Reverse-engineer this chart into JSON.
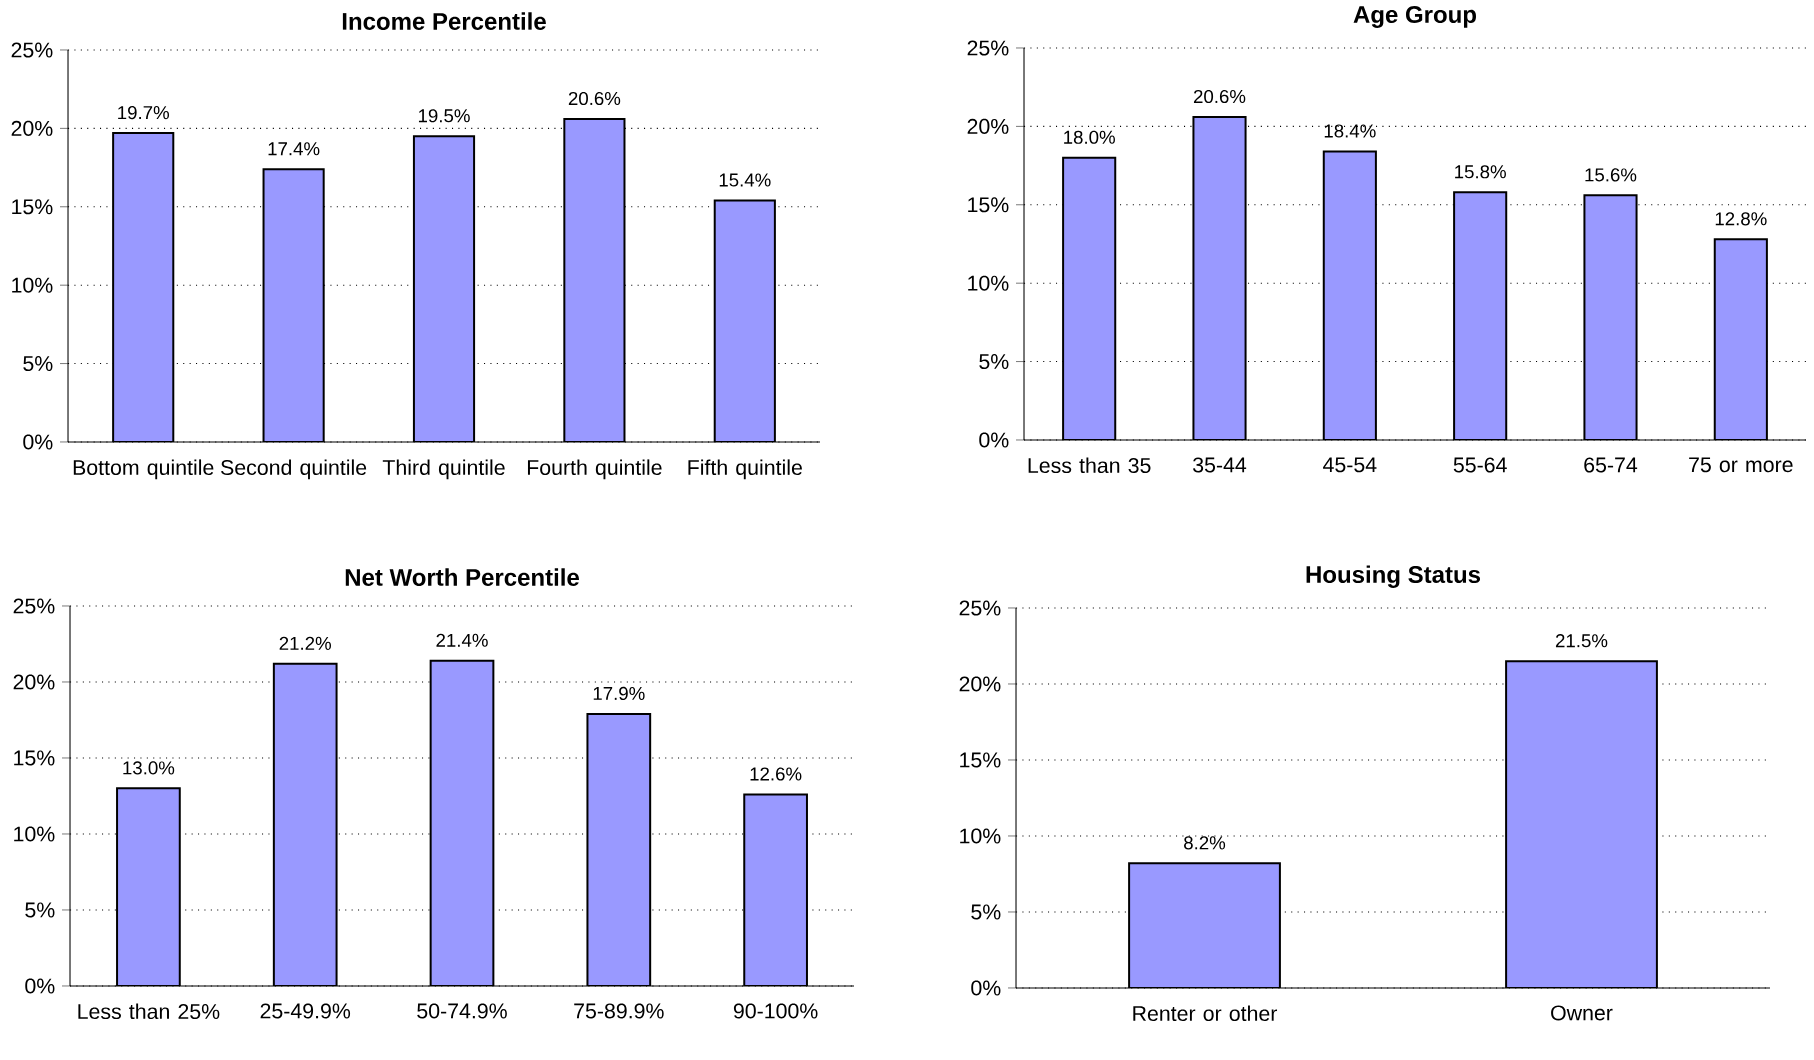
{
  "chart_data": [
    {
      "type": "bar",
      "title": "Income Percentile",
      "categories": [
        "Bottom quintile",
        "Second quintile",
        "Third quintile",
        "Fourth quintile",
        "Fifth quintile"
      ],
      "values": [
        19.7,
        17.4,
        19.5,
        20.6,
        15.4
      ],
      "value_labels": [
        "19.7%",
        "17.4%",
        "19.5%",
        "20.6%",
        "15.4%"
      ],
      "color": "#9999ff",
      "ylim": [
        0,
        25
      ],
      "yticks": [
        {
          "value": 0,
          "label": "0%"
        },
        {
          "value": 5,
          "label": "5%"
        },
        {
          "value": 10,
          "label": "10%"
        },
        {
          "value": 15,
          "label": "15%"
        },
        {
          "value": 20,
          "label": "20%"
        },
        {
          "value": 25,
          "label": "25%"
        }
      ],
      "grid": "y"
    },
    {
      "type": "bar",
      "title": "Age Group",
      "categories": [
        "Less than 35",
        "35-44",
        "45-54",
        "55-64",
        "65-74",
        "75 or more"
      ],
      "values": [
        18.0,
        20.6,
        18.4,
        15.8,
        15.6,
        12.8
      ],
      "value_labels": [
        "18.0%",
        "20.6%",
        "18.4%",
        "15.8%",
        "15.6%",
        "12.8%"
      ],
      "color": "#9999ff",
      "ylim": [
        0,
        25
      ],
      "yticks": [
        {
          "value": 0,
          "label": "0%"
        },
        {
          "value": 5,
          "label": "5%"
        },
        {
          "value": 10,
          "label": "10%"
        },
        {
          "value": 15,
          "label": "15%"
        },
        {
          "value": 20,
          "label": "20%"
        },
        {
          "value": 25,
          "label": "25%"
        }
      ],
      "grid": "y"
    },
    {
      "type": "bar",
      "title": "Net Worth Percentile",
      "categories": [
        "Less than 25%",
        "25-49.9%",
        "50-74.9%",
        "75-89.9%",
        "90-100%"
      ],
      "values": [
        13.0,
        21.2,
        21.4,
        17.9,
        12.6
      ],
      "value_labels": [
        "13.0%",
        "21.2%",
        "21.4%",
        "17.9%",
        "12.6%"
      ],
      "color": "#9999ff",
      "ylim": [
        0,
        25
      ],
      "yticks": [
        {
          "value": 0,
          "label": "0%"
        },
        {
          "value": 5,
          "label": "5%"
        },
        {
          "value": 10,
          "label": "10%"
        },
        {
          "value": 15,
          "label": "15%"
        },
        {
          "value": 20,
          "label": "20%"
        },
        {
          "value": 25,
          "label": "25%"
        }
      ],
      "grid": "y"
    },
    {
      "type": "bar",
      "title": "Housing Status",
      "categories": [
        "Renter or other",
        "Owner"
      ],
      "values": [
        8.2,
        21.5
      ],
      "value_labels": [
        "8.2%",
        "21.5%"
      ],
      "color": "#9999ff",
      "ylim": [
        0,
        25
      ],
      "yticks": [
        {
          "value": 0,
          "label": "0%"
        },
        {
          "value": 5,
          "label": "5%"
        },
        {
          "value": 10,
          "label": "10%"
        },
        {
          "value": 15,
          "label": "15%"
        },
        {
          "value": 20,
          "label": "20%"
        },
        {
          "value": 25,
          "label": "25%"
        }
      ],
      "grid": "y"
    }
  ]
}
